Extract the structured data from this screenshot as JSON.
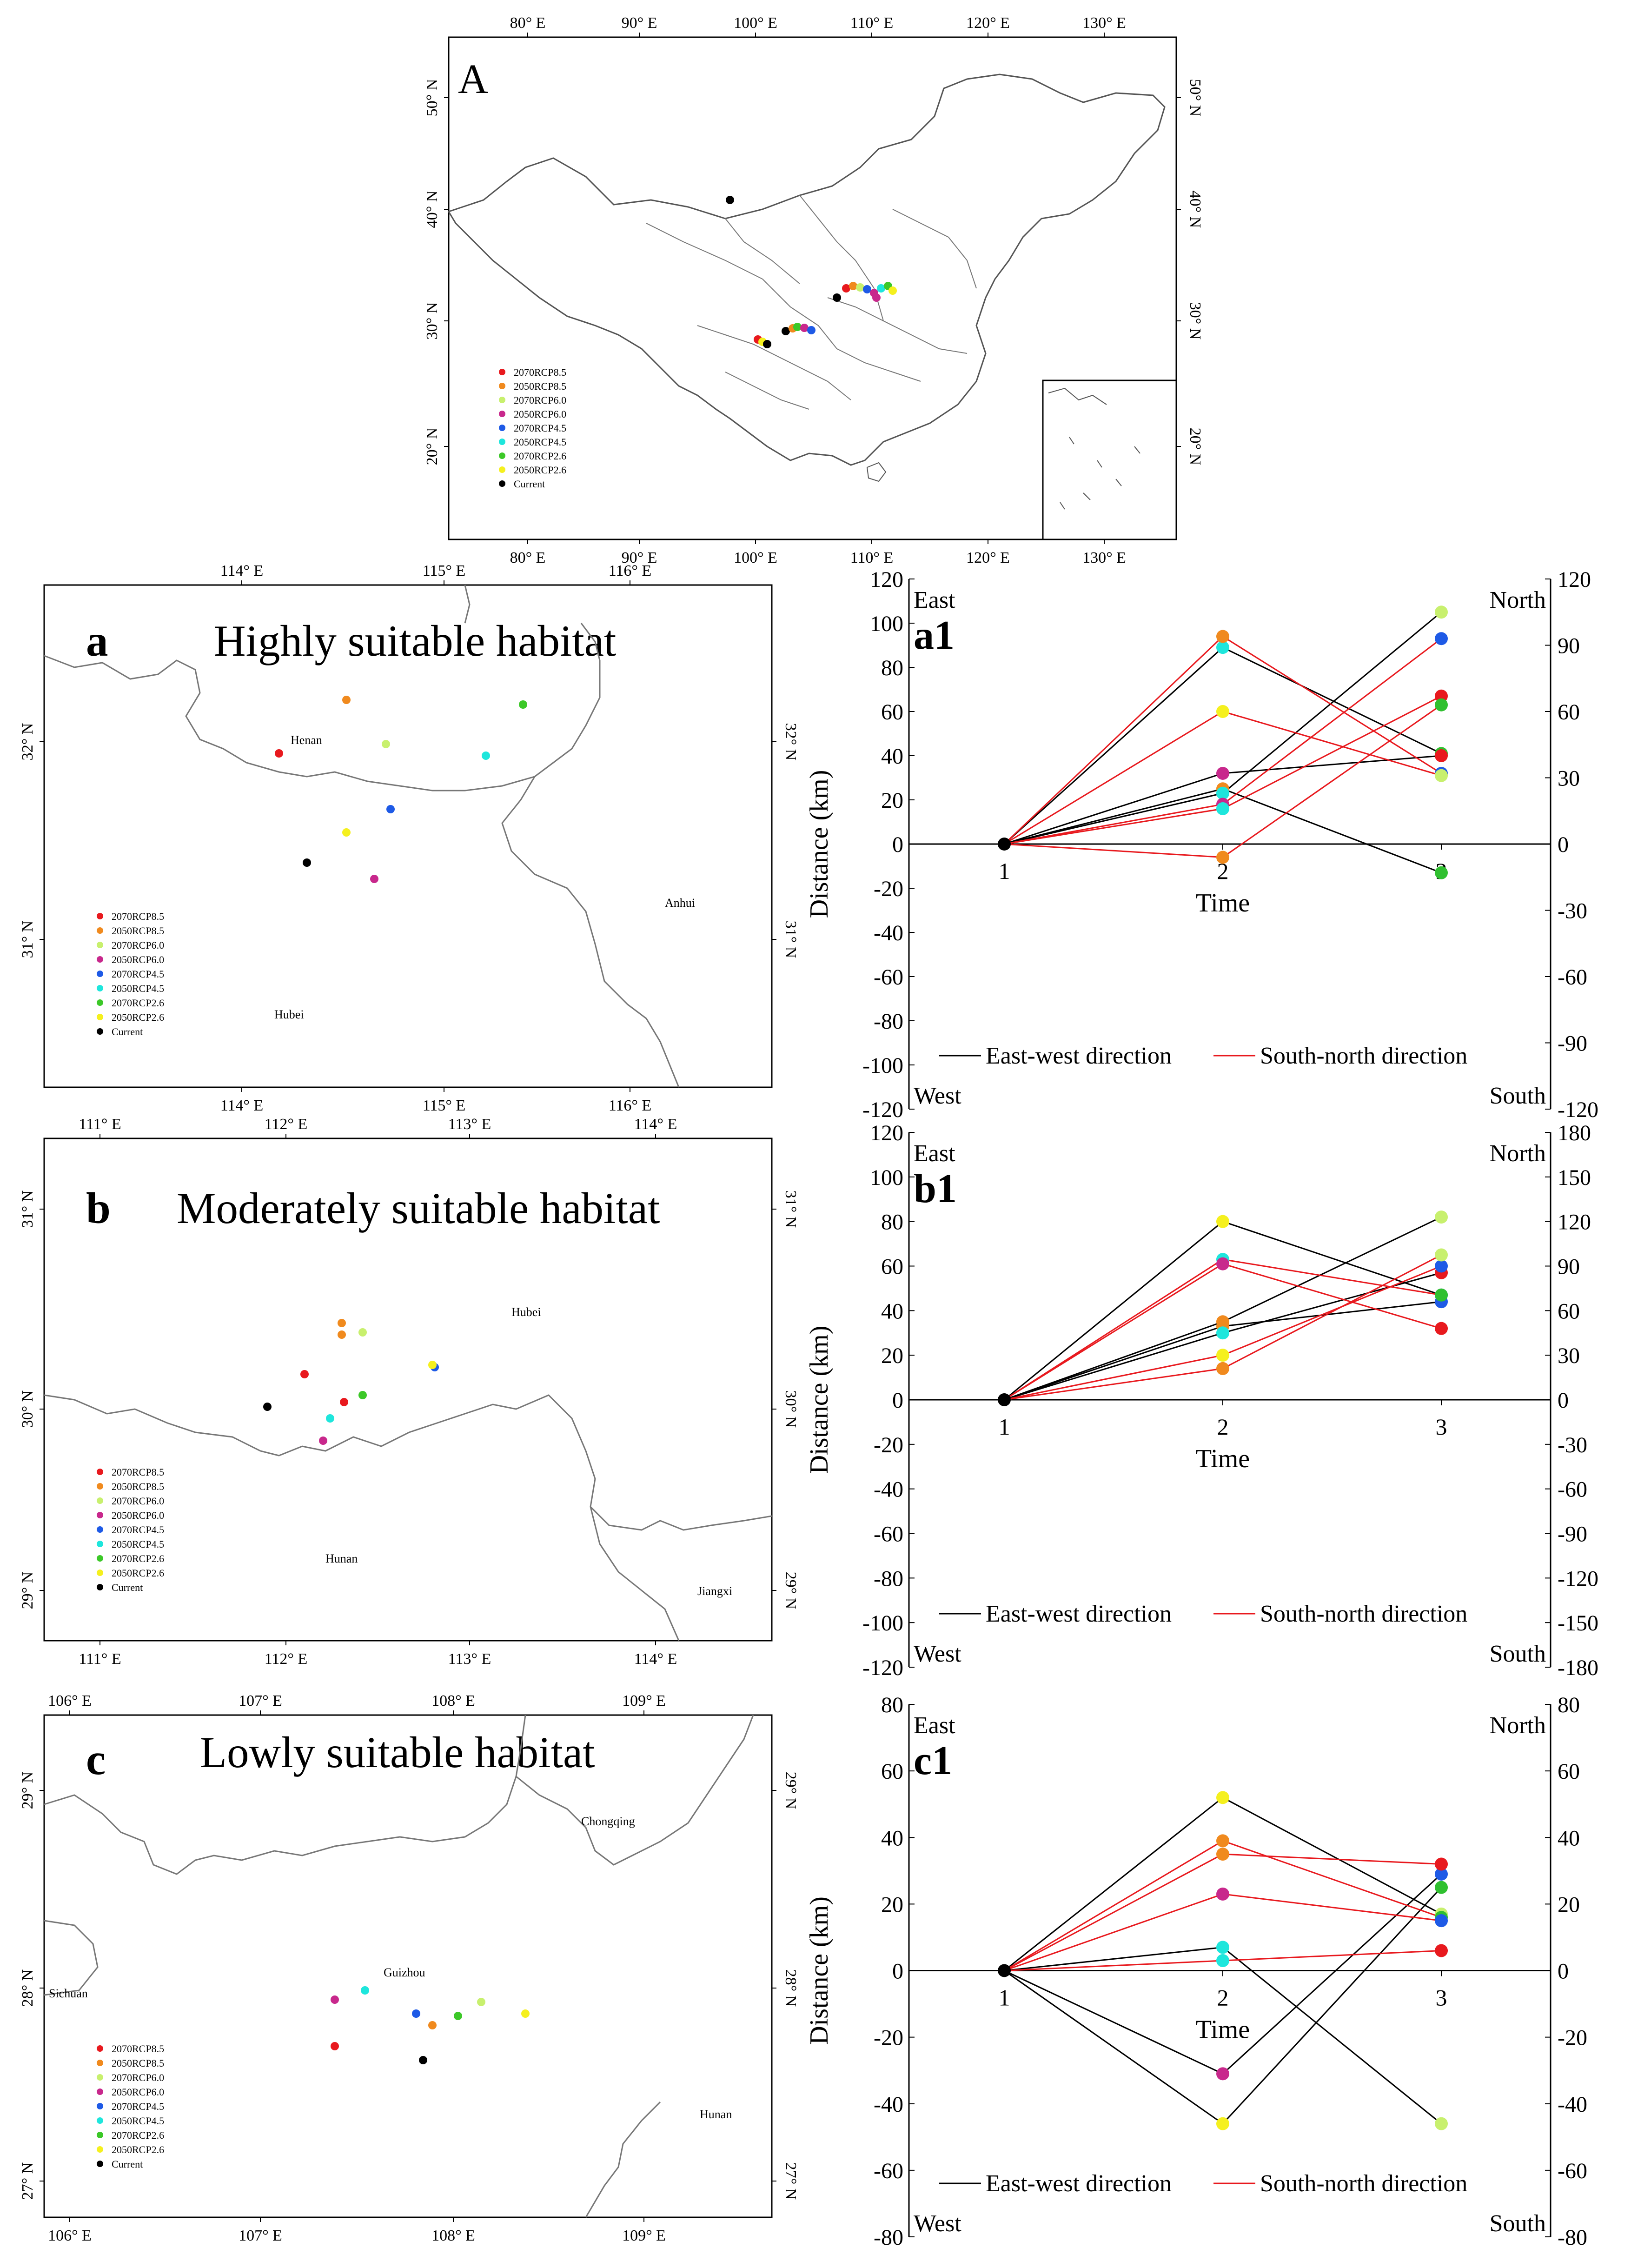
{
  "legend_items": [
    {
      "label": "2070RCP8.5",
      "color": "#e8191e"
    },
    {
      "label": "2050RCP8.5",
      "color": "#f08a1e"
    },
    {
      "label": "2070RCP6.0",
      "color": "#c8f06e"
    },
    {
      "label": "2050RCP6.0",
      "color": "#c8288c"
    },
    {
      "label": "2070RCP4.5",
      "color": "#1e5ae6"
    },
    {
      "label": "2050RCP4.5",
      "color": "#1ee6dc"
    },
    {
      "label": "2070RCP2.6",
      "color": "#3cc828"
    },
    {
      "label": "2050RCP2.6",
      "color": "#f5f01e"
    },
    {
      "label": "Current",
      "color": "#000000"
    }
  ],
  "maps": {
    "A": {
      "panel_label": "A",
      "lon_ticks": [
        "80° E",
        "90° E",
        "100° E",
        "110° E",
        "120° E",
        "130° E"
      ],
      "lat_ticks": [
        "20° N",
        "30° N",
        "40° N",
        "50° N"
      ]
    },
    "a": {
      "panel_label": "a",
      "title": "Highly suitable habitat",
      "lon_ticks": [
        "114° E",
        "115° E",
        "116° E"
      ],
      "lat_ticks": [
        "31° N",
        "32° N"
      ],
      "places": [
        "Henan",
        "Anhui",
        "Hubei"
      ]
    },
    "b": {
      "panel_label": "b",
      "title": "Moderately suitable habitat",
      "lon_ticks": [
        "111° E",
        "112° E",
        "113° E",
        "114° E"
      ],
      "lat_ticks": [
        "29° N",
        "30° N",
        "31° N"
      ],
      "places": [
        "Hubei",
        "Hunan",
        "Jiangxi"
      ]
    },
    "c": {
      "panel_label": "c",
      "title": "Lowly suitable habitat",
      "lon_ticks": [
        "106° E",
        "107° E",
        "108° E",
        "109° E"
      ],
      "lat_ticks": [
        "27° N",
        "28° N",
        "29° N"
      ],
      "places": [
        "Chongqing",
        "Sichuan",
        "Guizhou",
        "Hunan"
      ]
    }
  },
  "chart_data": [
    {
      "panel_label": "a1",
      "type": "line",
      "x": [
        1,
        2,
        3
      ],
      "xlabel": "Time",
      "ylabel": "Distance (km)",
      "ylim": [
        -120,
        120
      ],
      "y2lim": [
        -120,
        120
      ],
      "yticks": [
        120,
        100,
        80,
        60,
        40,
        20,
        0,
        -20,
        -40,
        -60,
        -80,
        -100,
        -120
      ],
      "y2ticks": [
        120,
        90,
        60,
        30,
        0,
        -30,
        -60,
        -90,
        -120
      ],
      "corner_labels": {
        "top_left": "East",
        "bottom_left": "West",
        "top_right": "North",
        "bottom_right": "South"
      },
      "legend": [
        "East-west direction",
        "South-north direction"
      ],
      "series": [
        {
          "group": "east-west",
          "color": "#2050ff",
          "values": [
            0,
            89,
            41
          ]
        },
        {
          "group": "east-west",
          "color": "#30c030",
          "values": [
            0,
            25,
            -13
          ]
        },
        {
          "group": "east-west",
          "color": "#f08a1e",
          "values": [
            0,
            23,
            105
          ]
        },
        {
          "group": "east-west",
          "color": "#c8288c",
          "values": [
            0,
            32,
            40
          ]
        },
        {
          "group": "south-north",
          "color": "#f08a1e",
          "values": [
            0,
            94,
            32
          ]
        },
        {
          "group": "south-north",
          "color": "#1ee6dc",
          "values": [
            0,
            60,
            31
          ]
        },
        {
          "group": "south-north",
          "color": "#e8191e",
          "values": [
            0,
            18,
            93
          ]
        },
        {
          "group": "south-north",
          "color": "#f5f01e",
          "values": [
            0,
            16,
            67
          ]
        },
        {
          "group": "south-north",
          "color": "#c8288c",
          "values": [
            0,
            -6,
            63
          ]
        }
      ]
    },
    {
      "panel_label": "b1",
      "type": "line",
      "x": [
        1,
        2,
        3
      ],
      "xlabel": "Time",
      "ylabel": "Distance (km)",
      "ylim": [
        -120,
        120
      ],
      "y2lim": [
        -180,
        180
      ],
      "yticks": [
        120,
        100,
        80,
        60,
        40,
        20,
        0,
        -20,
        -40,
        -60,
        -80,
        -100,
        -120
      ],
      "y2ticks": [
        180,
        150,
        120,
        90,
        60,
        30,
        0,
        -30,
        -60,
        -90,
        -120,
        -150,
        -180
      ],
      "corner_labels": {
        "top_left": "East",
        "bottom_left": "West",
        "top_right": "North",
        "bottom_right": "South"
      },
      "legend": [
        "East-west direction",
        "South-north direction"
      ],
      "series": [
        {
          "group": "east-west",
          "color": "#f5f01e",
          "values": [
            0,
            80,
            47
          ]
        },
        {
          "group": "east-west",
          "color": "#f08a1e",
          "values": [
            0,
            35,
            82
          ]
        },
        {
          "group": "east-west",
          "color": "#1ee6dc",
          "values": [
            0,
            33,
            44
          ]
        },
        {
          "group": "east-west",
          "color": "#c8288c",
          "values": [
            0,
            30,
            57
          ]
        },
        {
          "group": "south-north",
          "color": "#f08a1e",
          "values": [
            0,
            63,
            47
          ]
        },
        {
          "group": "south-north",
          "color": "#f5f01e",
          "values": [
            0,
            61,
            32
          ]
        },
        {
          "group": "south-north",
          "color": "#1ee6dc",
          "values": [
            0,
            20,
            60
          ]
        },
        {
          "group": "south-north",
          "color": "#c8288c",
          "values": [
            0,
            14,
            65
          ]
        }
      ]
    },
    {
      "panel_label": "c1",
      "type": "line",
      "x": [
        1,
        2,
        3
      ],
      "xlabel": "Time",
      "ylabel": "Distance (km)",
      "ylim": [
        -80,
        80
      ],
      "y2lim": [
        -80,
        80
      ],
      "yticks": [
        80,
        60,
        40,
        20,
        0,
        -20,
        -40,
        -60,
        -80
      ],
      "y2ticks": [
        80,
        60,
        40,
        20,
        0,
        -20,
        -40,
        -60,
        -80
      ],
      "corner_labels": {
        "top_left": "East",
        "bottom_left": "West",
        "top_right": "North",
        "bottom_right": "South"
      },
      "legend": [
        "East-west direction",
        "South-north direction"
      ],
      "series": [
        {
          "group": "east-west",
          "color": "#f5f01e",
          "values": [
            0,
            52,
            17
          ]
        },
        {
          "group": "east-west",
          "color": "#f08a1e",
          "values": [
            0,
            7,
            -46
          ]
        },
        {
          "group": "east-west",
          "color": "#c8288c",
          "values": [
            0,
            -31,
            29
          ]
        },
        {
          "group": "east-west",
          "color": "#1ee6dc",
          "values": [
            0,
            -46,
            25
          ]
        },
        {
          "group": "south-north",
          "color": "#1ee6dc",
          "values": [
            0,
            39,
            16
          ]
        },
        {
          "group": "south-north",
          "color": "#c8288c",
          "values": [
            0,
            35,
            32
          ]
        },
        {
          "group": "south-north",
          "color": "#f5f01e",
          "values": [
            0,
            23,
            15
          ]
        },
        {
          "group": "south-north",
          "color": "#f08a1e",
          "values": [
            0,
            3,
            6
          ]
        }
      ]
    }
  ],
  "chart_point_colors": {
    "a1": [
      [
        "#000000"
      ],
      [
        "#1ee6dc",
        "#f08a1e",
        "#1ee6dc",
        "#c8288c",
        "#f08a1e",
        "#f5f01e",
        "#c8288c"
      ],
      [
        "#30c030",
        "#30c030",
        "#c8f06e",
        "#e8191e",
        "#1e5ae6",
        "#c8f06e",
        "#1e5ae6",
        "#e8191e"
      ]
    ],
    "b1": [
      [
        "#000000"
      ],
      [
        "#f5f01e",
        "#f08a1e",
        "#f08a1e",
        "#1ee6dc",
        "#1ee6dc",
        "#c8288c"
      ],
      [
        "#1e5ae6",
        "#c8f06e",
        "#1e5ae6",
        "#e8191e",
        "#30c030",
        "#e8191e"
      ]
    ],
    "c1": [
      [
        "#000000"
      ],
      [
        "#f5f01e",
        "#1ee6dc",
        "#c8288c",
        "#f5f01e",
        "#f08a1e",
        "#f08a1e",
        "#c8288c",
        "#1ee6dc"
      ],
      [
        "#c8f06e",
        "#c8f06e",
        "#1e5ae6",
        "#30c030",
        "#30c030",
        "#e8191e",
        "#1e5ae6",
        "#e8191e"
      ]
    ]
  }
}
